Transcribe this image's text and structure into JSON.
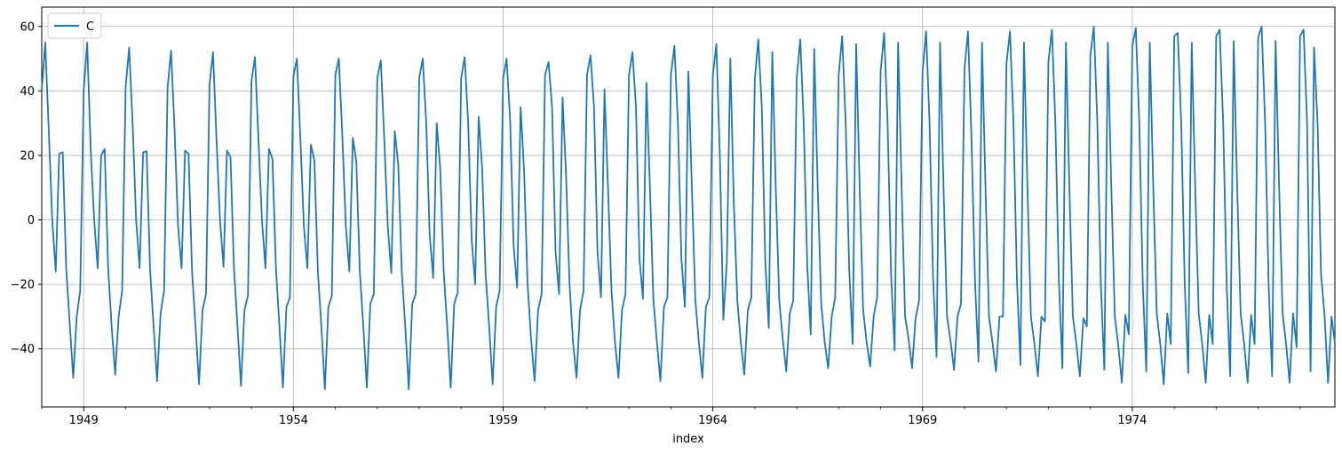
{
  "chart_data": {
    "type": "line",
    "title": "",
    "xlabel": "index",
    "ylabel": "",
    "grid": true,
    "legend_position": "top-left",
    "xlim": [
      1948.0,
      1978.83
    ],
    "ylim": [
      -58,
      66
    ],
    "x_ticks": [
      1949,
      1954,
      1959,
      1964,
      1969,
      1974
    ],
    "x_tick_labels": [
      "1949",
      "1954",
      "1959",
      "1964",
      "1969",
      "1974"
    ],
    "y_ticks": [
      -40,
      -20,
      0,
      20,
      40,
      60
    ],
    "y_tick_labels": [
      "−40",
      "−20",
      "0",
      "20",
      "40",
      "60"
    ],
    "x_start": 1948.0,
    "x_step": 0.08333333,
    "series": [
      {
        "name": "C",
        "color": "#1f77b4",
        "values": [
          40,
          55,
          28,
          0,
          -16,
          20.5,
          21,
          -15,
          -32,
          -49,
          -30,
          -22,
          40,
          55,
          22,
          0,
          -15,
          20,
          22,
          -15,
          -33,
          -48,
          -30,
          -22,
          41,
          53.5,
          30,
          0,
          -15,
          21,
          21.3,
          -15.5,
          -33,
          -50,
          -29,
          -22,
          41,
          52.5,
          28,
          -2,
          -15,
          21.5,
          20.5,
          -16,
          -33,
          -51,
          -28,
          -23,
          42,
          52,
          25,
          0,
          -14.5,
          21.5,
          19.5,
          -15,
          -33,
          -51.5,
          -28,
          -23.5,
          43,
          50.5,
          25,
          0,
          -15,
          22,
          19,
          -15,
          -33,
          -52,
          -27,
          -24,
          44.5,
          50,
          25,
          -2,
          -15,
          23.3,
          18.5,
          -16,
          -33,
          -52.5,
          -27,
          -23.5,
          45,
          50,
          26,
          -2,
          -16,
          25.5,
          18,
          -16,
          -33,
          -52,
          -26,
          -23,
          44,
          49.5,
          25,
          -2,
          -16.5,
          27.5,
          17,
          -16,
          -33,
          -52.5,
          -26,
          -23,
          44,
          50,
          30,
          -5,
          -18,
          30,
          16,
          -16,
          -33,
          -52,
          -26,
          -22.5,
          44,
          50.5,
          30,
          -6,
          -20,
          32,
          16,
          -17,
          -33,
          -51,
          -27,
          -22,
          44,
          50,
          31,
          -8,
          -21,
          35,
          15,
          -20,
          -37,
          -50,
          -28,
          -23,
          45,
          49,
          35,
          -10,
          -23,
          38,
          14,
          -20,
          -38,
          -49,
          -28,
          -22,
          45,
          51,
          35,
          -10,
          -24,
          40.5,
          10,
          -22,
          -38,
          -49,
          -28,
          -23,
          45,
          52,
          35,
          -12,
          -24.5,
          42.5,
          10,
          -25,
          -38,
          -50,
          -27,
          -24,
          45,
          54,
          30,
          -12,
          -27,
          46,
          10,
          -25,
          -38,
          -49,
          -27,
          -24,
          45,
          54.5,
          20,
          -31,
          -13,
          50,
          5,
          -25,
          -38,
          -48,
          -28,
          -24,
          43.5,
          56,
          35,
          -13,
          -33.5,
          52,
          10,
          -25,
          -37,
          -47,
          -29,
          -25,
          44,
          56,
          30,
          -14,
          -35.5,
          53,
          10,
          -26,
          -38,
          -46,
          -30,
          -24,
          45,
          57,
          30,
          -15,
          -38.5,
          54.5,
          10,
          -28,
          -38,
          -45.5,
          -30,
          -24,
          46,
          58,
          30,
          -17,
          -40.5,
          55,
          10,
          -30,
          -37,
          -46,
          -30.5,
          -25,
          46,
          58.5,
          30,
          -18,
          -42.5,
          55,
          10,
          -30,
          -37.5,
          -46.5,
          -30,
          -26,
          47,
          58.5,
          25,
          -19,
          -44,
          55,
          10,
          -30,
          -38,
          -47,
          -30,
          -30,
          48.5,
          58.5,
          30,
          -19,
          -45,
          55,
          10,
          -30,
          -38.5,
          -48.5,
          -30,
          -31.5,
          49,
          59,
          30,
          -19,
          -46,
          55,
          10,
          -30,
          -38.5,
          -48.5,
          -30.5,
          -33,
          51,
          60,
          30,
          -20,
          -46.5,
          55,
          10,
          -30,
          -39,
          -50.5,
          -29.5,
          -35.5,
          54,
          59.5,
          30,
          -20,
          -47,
          55,
          10,
          -29,
          -38.5,
          -51,
          -29,
          -38.5,
          57,
          58,
          30,
          -20,
          -47.5,
          55,
          10,
          -29,
          -38.5,
          -50.5,
          -29.5,
          -38.5,
          57,
          59,
          30,
          -20,
          -48.5,
          55.5,
          10,
          -29,
          -38.5,
          -50.5,
          -29.5,
          -38.5,
          56.5,
          60,
          30,
          -20,
          -48.5,
          55.5,
          10,
          -29,
          -38.5,
          -50.5,
          -29,
          -39.5,
          57,
          59,
          30,
          -47,
          53.5,
          30,
          -17,
          -29.5,
          -50.5,
          -30,
          -38.5
        ]
      }
    ]
  }
}
